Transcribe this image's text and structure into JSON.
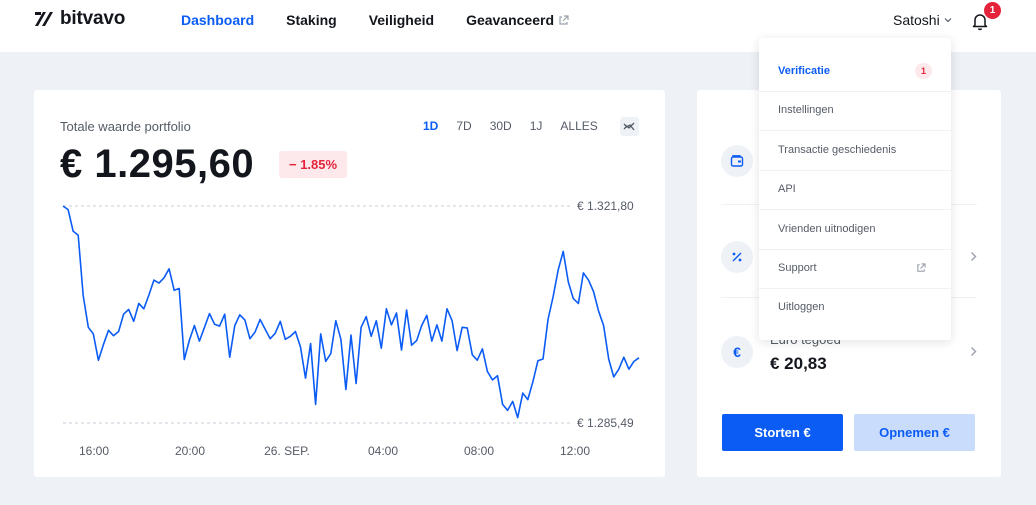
{
  "brand": {
    "name": "bitvavo"
  },
  "nav": {
    "items": [
      {
        "label": "Dashboard",
        "active": true
      },
      {
        "label": "Staking",
        "active": false
      },
      {
        "label": "Veiligheid",
        "active": false
      },
      {
        "label": "Geavanceerd",
        "active": false,
        "external": true
      }
    ]
  },
  "user": {
    "name": "Satoshi",
    "notifications": "1"
  },
  "portfolio": {
    "title": "Totale waarde portfolio",
    "value": "€ 1.295,60",
    "change": "− 1.85%",
    "ranges": [
      {
        "label": "1D",
        "active": true
      },
      {
        "label": "7D",
        "active": false
      },
      {
        "label": "30D",
        "active": false
      },
      {
        "label": "1J",
        "active": false
      },
      {
        "label": "ALLES",
        "active": false
      }
    ]
  },
  "chart_data": {
    "type": "line",
    "title": "",
    "xlabel": "",
    "ylabel": "",
    "x_ticks": [
      "16:00",
      "20:00",
      "26. SEP.",
      "04:00",
      "08:00",
      "12:00"
    ],
    "y_ref_labels": [
      "€ 1.321,80",
      "€ 1.285,49"
    ],
    "ylim": [
      1285.49,
      1321.8
    ],
    "grid": false,
    "series": [
      {
        "color": "#0b5cf5",
        "values": [
          1321.8,
          1321.2,
          1317.6,
          1316.9,
          1306.8,
          1301.5,
          1300.4,
          1296.0,
          1298.6,
          1301.0,
          1300.1,
          1300.8,
          1303.7,
          1304.5,
          1302.5,
          1305.5,
          1304.6,
          1306.9,
          1309.4,
          1308.9,
          1309.8,
          1311.3,
          1307.7,
          1308.0,
          1296.1,
          1299.3,
          1301.8,
          1299.2,
          1301.5,
          1303.8,
          1302.0,
          1301.7,
          1303.7,
          1296.5,
          1301.8,
          1303.6,
          1302.7,
          1299.6,
          1300.7,
          1302.8,
          1301.2,
          1299.6,
          1300.5,
          1302.5,
          1299.5,
          1300.0,
          1300.8,
          1298.2,
          1293.0,
          1298.8,
          1288.6,
          1300.4,
          1295.8,
          1297.1,
          1302.6,
          1299.5,
          1291.1,
          1300.2,
          1292.1,
          1301.5,
          1303.3,
          1300.0,
          1302.6,
          1298.0,
          1304.6,
          1301.9,
          1303.9,
          1297.7,
          1304.4,
          1298.5,
          1299.3,
          1301.8,
          1303.5,
          1299.2,
          1301.9,
          1299.2,
          1304.6,
          1302.6,
          1297.6,
          1301.5,
          1301.4,
          1296.9,
          1296.0,
          1297.9,
          1294.1,
          1292.7,
          1293.4,
          1288.6,
          1287.6,
          1289.1,
          1286.4,
          1290.5,
          1289.4,
          1292.4,
          1295.9,
          1296.2,
          1302.9,
          1306.6,
          1311.1,
          1314.2,
          1309.1,
          1306.3,
          1305.5,
          1310.6,
          1309.4,
          1307.5,
          1304.2,
          1301.8,
          1296.2,
          1293.2,
          1294.5,
          1296.5,
          1294.5,
          1295.8,
          1296.4
        ]
      }
    ]
  },
  "side": {
    "rows": [
      {
        "icon": "wallet-icon"
      },
      {
        "icon": "percent-icon"
      },
      {
        "icon": "euro-icon",
        "label": "Euro tegoed",
        "value": "€ 20,83"
      }
    ],
    "deposit_label": "Storten €",
    "withdraw_label": "Opnemen €"
  },
  "dropdown": {
    "items": [
      {
        "label": "Verificatie",
        "active": true,
        "badge": "1"
      },
      {
        "label": "Instellingen"
      },
      {
        "label": "Transactie geschiedenis"
      },
      {
        "label": "API"
      },
      {
        "label": "Vrienden uitnodigen"
      },
      {
        "label": "Support",
        "external": true
      },
      {
        "label": "Uitloggen"
      }
    ]
  },
  "colors": {
    "accent": "#0b5cf5",
    "negative": "#e5233b",
    "background": "#eef1f6"
  }
}
